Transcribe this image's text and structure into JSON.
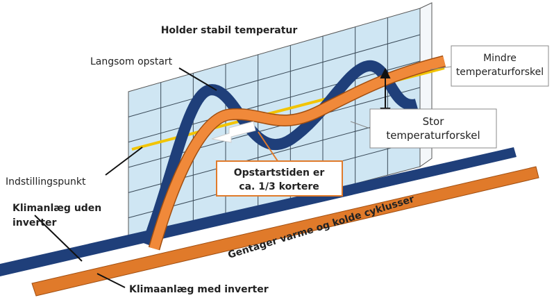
{
  "title": "Holder stabil temperatur",
  "labels": {
    "slow_start": "Langsom opstart",
    "small_diff": [
      "Mindre",
      "temperaturforskel"
    ],
    "large_diff": [
      "Stor",
      "temperaturforskel"
    ],
    "setpoint": "Indstillingspunkt",
    "startup": [
      "Opstartstiden er",
      "ca. 1/3 kortere"
    ],
    "without_inverter": [
      "Klimanlæg uden",
      "inverter"
    ],
    "cycles": "Gentager varme og kolde cyklusser",
    "with_inverter": "Klimaanlæg med inverter"
  }
}
